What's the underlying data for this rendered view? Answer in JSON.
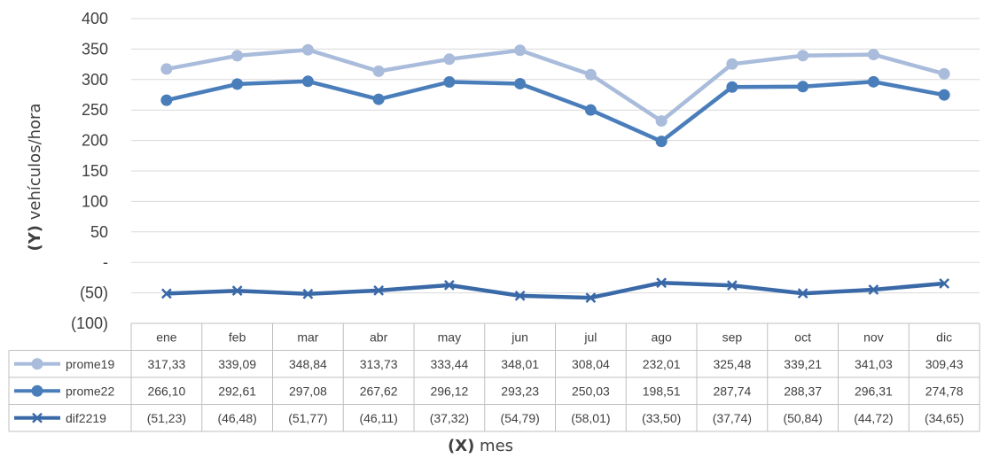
{
  "chart_data": {
    "type": "line",
    "categories": [
      "ene",
      "feb",
      "mar",
      "abr",
      "may",
      "jun",
      "jul",
      "ago",
      "sep",
      "oct",
      "nov",
      "dic"
    ],
    "series": [
      {
        "name": "prome19",
        "color": "#a9bcdb",
        "marker": "circle",
        "values": [
          317.33,
          339.09,
          348.84,
          313.73,
          333.44,
          348.01,
          308.04,
          232.01,
          325.48,
          339.21,
          341.03,
          309.43
        ],
        "labels": [
          "317,33",
          "339,09",
          "348,84",
          "313,73",
          "333,44",
          "348,01",
          "308,04",
          "232,01",
          "325,48",
          "339,21",
          "341,03",
          "309,43"
        ]
      },
      {
        "name": "prome22",
        "color": "#4a7ebb",
        "marker": "circle",
        "values": [
          266.1,
          292.61,
          297.08,
          267.62,
          296.12,
          293.23,
          250.03,
          198.51,
          287.74,
          288.37,
          296.31,
          274.78
        ],
        "labels": [
          "266,10",
          "292,61",
          "297,08",
          "267,62",
          "296,12",
          "293,23",
          "250,03",
          "198,51",
          "287,74",
          "288,37",
          "296,31",
          "274,78"
        ]
      },
      {
        "name": "dif2219",
        "color": "#3a69a8",
        "marker": "x",
        "values": [
          -51.23,
          -46.48,
          -51.77,
          -46.11,
          -37.32,
          -54.79,
          -58.01,
          -33.5,
          -37.74,
          -50.84,
          -44.72,
          -34.65
        ],
        "labels": [
          "(51,23)",
          "(46,48)",
          "(51,77)",
          "(46,11)",
          "(37,32)",
          "(54,79)",
          "(58,01)",
          "(33,50)",
          "(37,74)",
          "(50,84)",
          "(44,72)",
          "(34,65)"
        ]
      }
    ],
    "ylim": [
      -100,
      400
    ],
    "ytick_values": [
      400,
      350,
      300,
      250,
      200,
      150,
      100,
      50,
      0,
      -50,
      -100
    ],
    "ytick_labels": [
      "400",
      "350",
      "300",
      "250",
      "200",
      "150",
      "100",
      "50",
      "-",
      "(50)",
      "(100)"
    ],
    "ylabel_bold": "(Y)",
    "ylabel_rest": " vehículos/hora",
    "xlabel_bold": "(X)",
    "xlabel_rest": " mes",
    "grid": true,
    "legend": "data-table"
  }
}
